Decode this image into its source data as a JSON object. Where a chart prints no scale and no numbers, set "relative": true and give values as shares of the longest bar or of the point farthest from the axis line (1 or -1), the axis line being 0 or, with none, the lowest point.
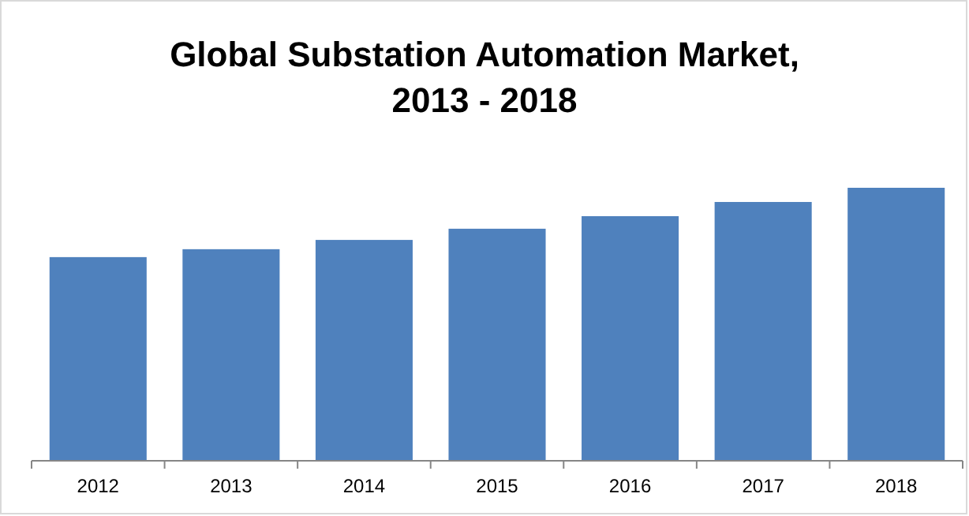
{
  "chart_data": {
    "type": "bar",
    "title": "Global Substation Automation Market,\n2013 - 2018",
    "categories": [
      "2012",
      "2013",
      "2014",
      "2015",
      "2016",
      "2017",
      "2018"
    ],
    "values": [
      0.746,
      0.775,
      0.809,
      0.85,
      0.896,
      0.948,
      1
    ],
    "color": "#4f81bd",
    "relative": true
  }
}
